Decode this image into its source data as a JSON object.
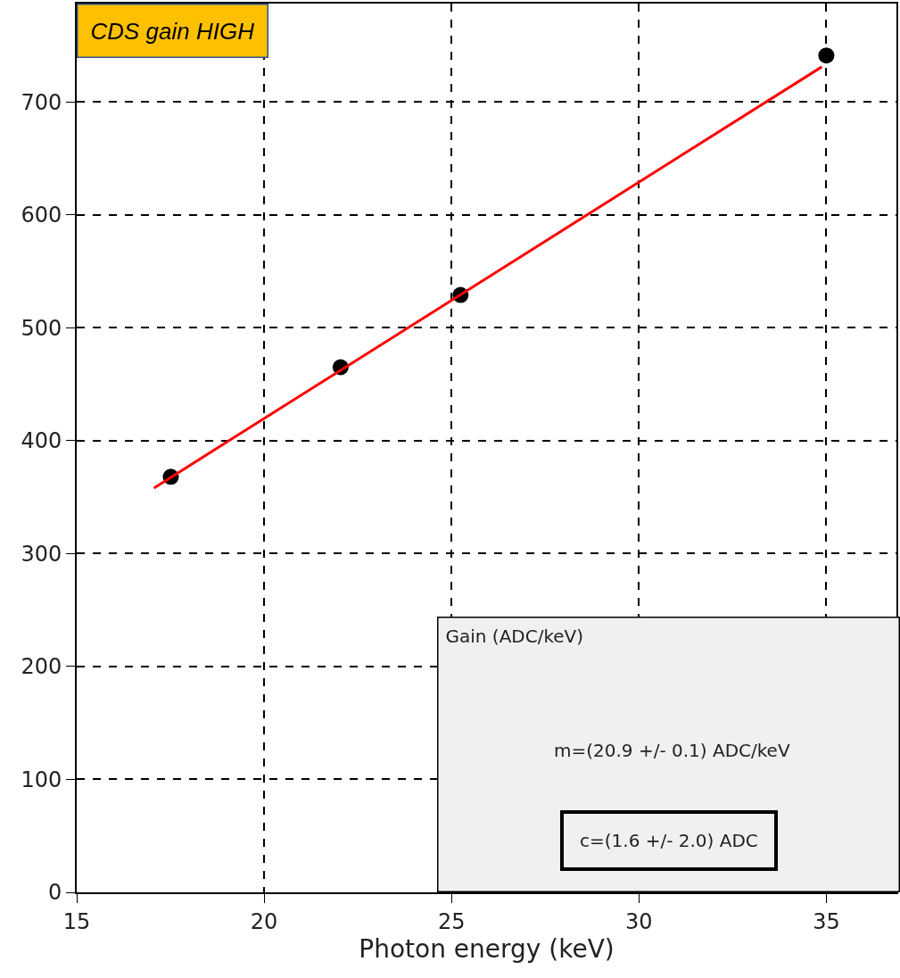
{
  "chart_data": {
    "type": "scatter",
    "xlabel": "Photon energy (keV)",
    "annotations": [
      "CDS gain HIGH",
      "Gain (ADC/keV)",
      "m=(20.9 +/- 0.1) ADC/keV",
      "c=(1.6 +/- 2.0) ADC"
    ],
    "series": [
      {
        "type": "scatter",
        "marker": "circle",
        "color": "#000000",
        "x": [
          17.51,
          22.04,
          25.24,
          35.0
        ],
        "values": [
          368,
          465,
          529,
          741
        ]
      },
      {
        "type": "line",
        "marker": "none",
        "color": "#ff0000",
        "x": [
          17.06,
          34.88
        ],
        "values": [
          358,
          731
        ]
      }
    ],
    "xlim": [
      15,
      36.87
    ],
    "ylim": [
      0,
      787
    ],
    "xticks": [
      15,
      20,
      25,
      30,
      35
    ],
    "yticks": [
      0,
      100,
      200,
      300,
      400,
      500,
      600,
      700
    ],
    "grid": true
  }
}
